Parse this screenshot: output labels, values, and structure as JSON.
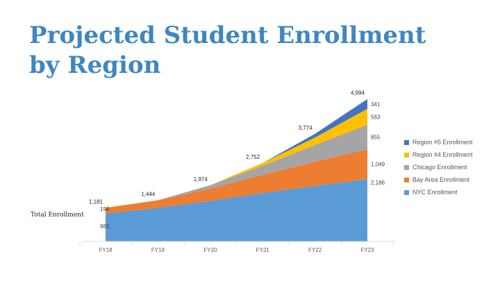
{
  "slide": {
    "title_line1": "Projected Student Enrollment",
    "title_line2": "by Region",
    "side_label": "Total Enrollment"
  },
  "colors": [
    "#5b9bd5",
    "#ed7d31",
    "#a5a5a5",
    "#ffc000",
    "#4472c4"
  ],
  "chart_data": {
    "type": "area",
    "stacked": true,
    "categories": [
      "FY18",
      "FY19",
      "FY20",
      "FY21",
      "FY22",
      "FY23"
    ],
    "series": [
      {
        "name": "NYC Enrollment",
        "values": [
          983,
          1180,
          1420,
          1700,
          1950,
          2186
        ]
      },
      {
        "name": "Bay Area Enrollment",
        "values": [
          198,
          264,
          430,
          640,
          850,
          1049
        ]
      },
      {
        "name": "Chicago Enrollment",
        "values": [
          0,
          0,
          124,
          312,
          584,
          855
        ]
      },
      {
        "name": "Region #4 Enrollment",
        "values": [
          0,
          0,
          0,
          100,
          260,
          563
        ]
      },
      {
        "name": "Region #5 Enrollment",
        "values": [
          0,
          0,
          0,
          0,
          130,
          341
        ]
      }
    ],
    "totals": [
      1181,
      1444,
      1974,
      2752,
      3774,
      4994
    ],
    "total_labels": [
      "1,181",
      "1,444",
      "1,974",
      "2,752",
      "3,774",
      "4,994"
    ],
    "last_point_labels": [
      "2,186",
      "1,049",
      "855",
      "563",
      "341"
    ],
    "first_point_labels": [
      "983",
      "198"
    ],
    "ylim": [
      0,
      5000
    ],
    "legend": "right"
  }
}
